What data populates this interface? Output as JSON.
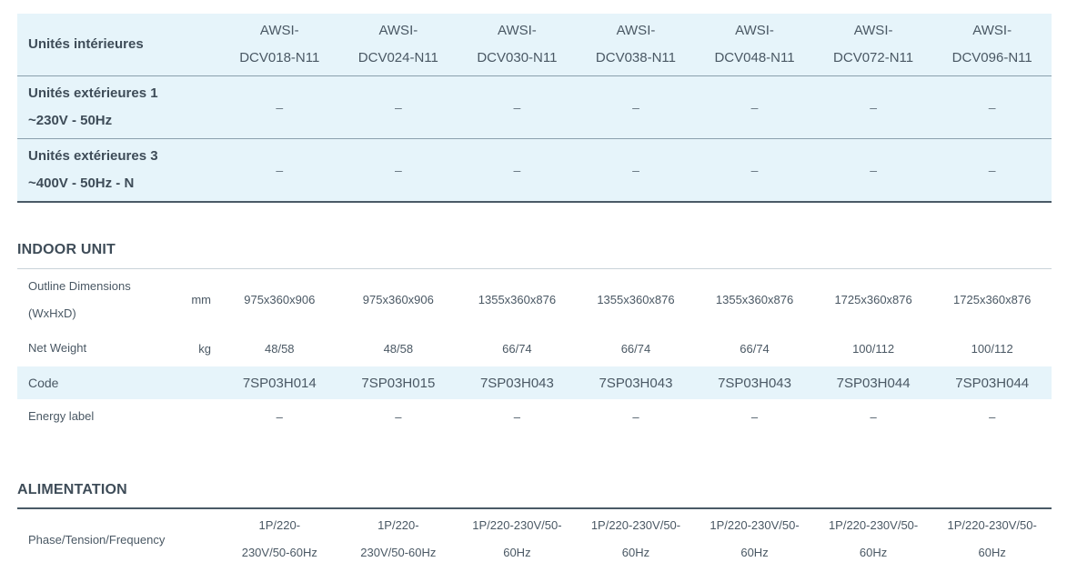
{
  "header": {
    "indoor_label": "Unités intérieures",
    "models": [
      [
        "AWSI-",
        "DCV018-N11"
      ],
      [
        "AWSI-",
        "DCV024-N11"
      ],
      [
        "AWSI-",
        "DCV030-N11"
      ],
      [
        "AWSI-",
        "DCV038-N11"
      ],
      [
        "AWSI-",
        "DCV048-N11"
      ],
      [
        "AWSI-",
        "DCV072-N11"
      ],
      [
        "AWSI-",
        "DCV096-N11"
      ]
    ],
    "outdoor1_label": [
      "Unités extérieures 1",
      "~230V - 50Hz"
    ],
    "outdoor3_label": [
      "Unités extérieures 3",
      "~400V - 50Hz - N"
    ],
    "outdoor1_values": [
      "–",
      "–",
      "–",
      "–",
      "–",
      "–",
      "–"
    ],
    "outdoor3_values": [
      "–",
      "–",
      "–",
      "–",
      "–",
      "–",
      "–"
    ]
  },
  "indoor_unit": {
    "title": "INDOOR UNIT",
    "dimensions": {
      "label": [
        "Outline Dimensions",
        "(WxHxD)"
      ],
      "unit": "mm",
      "values": [
        "975x360x906",
        "975x360x906",
        "1355x360x876",
        "1355x360x876",
        "1355x360x876",
        "1725x360x876",
        "1725x360x876"
      ]
    },
    "net_weight": {
      "label": "Net Weight",
      "unit": "kg",
      "values": [
        "48/58",
        "48/58",
        "66/74",
        "66/74",
        "66/74",
        "100/112",
        "100/112"
      ]
    },
    "code": {
      "label": "Code",
      "values": [
        "7SP03H014",
        "7SP03H015",
        "7SP03H043",
        "7SP03H043",
        "7SP03H043",
        "7SP03H044",
        "7SP03H044"
      ]
    },
    "energy_label": {
      "label": "Energy label",
      "values": [
        "–",
        "–",
        "–",
        "–",
        "–",
        "–",
        "–"
      ]
    }
  },
  "alimentation": {
    "title": "ALIMENTATION",
    "phase": {
      "label": "Phase/Tension/Frequency",
      "values": [
        [
          "1P/220-",
          "230V/50-60Hz"
        ],
        [
          "1P/220-",
          "230V/50-60Hz"
        ],
        [
          "1P/220-230V/50-",
          "60Hz"
        ],
        [
          "1P/220-230V/50-",
          "60Hz"
        ],
        [
          "1P/220-230V/50-",
          "60Hz"
        ],
        [
          "1P/220-230V/50-",
          "60Hz"
        ],
        [
          "1P/220-230V/50-",
          "60Hz"
        ]
      ]
    }
  }
}
